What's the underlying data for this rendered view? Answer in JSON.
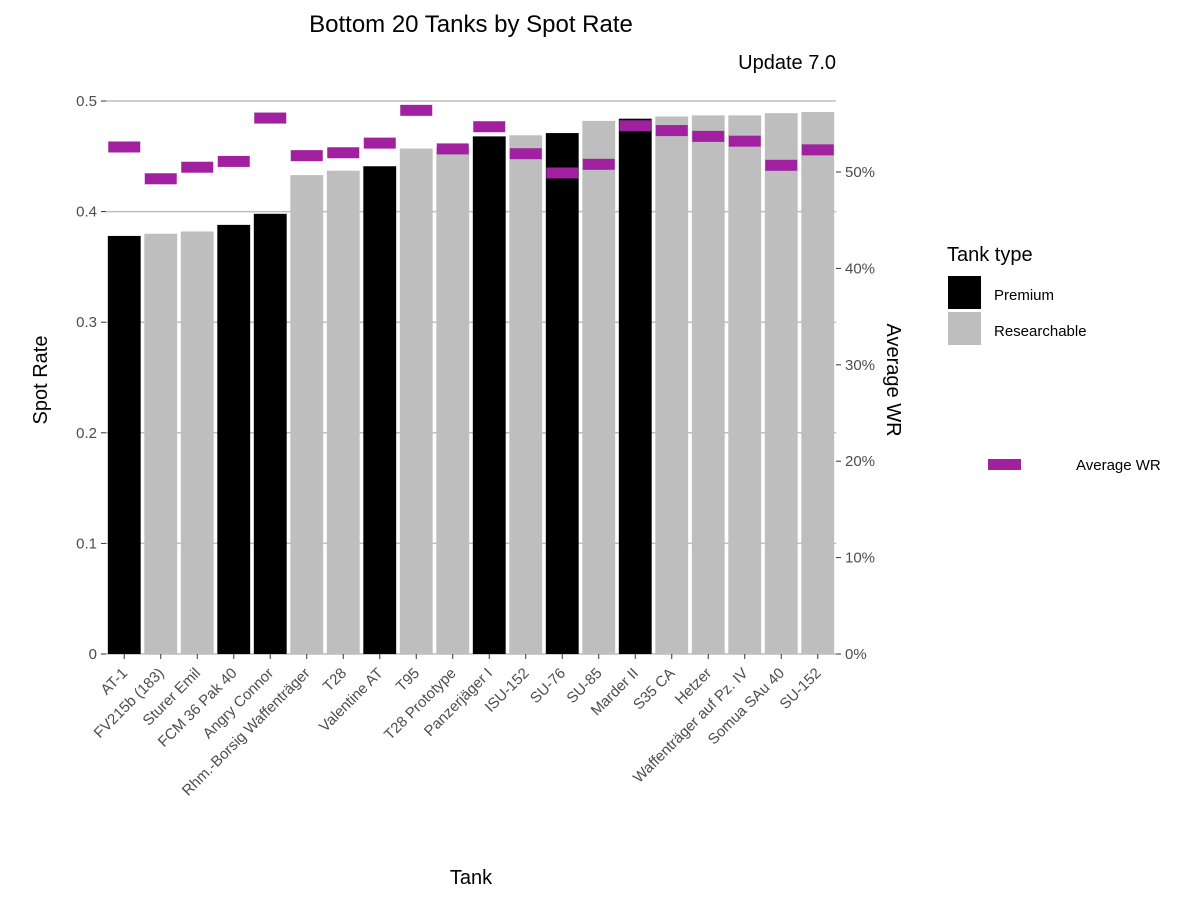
{
  "chart_data": {
    "type": "bar",
    "title": "Bottom 20 Tanks by Spot Rate",
    "subtitle": "Update 7.0",
    "xlabel": "Tank",
    "ylabel": "Spot Rate",
    "y2label": "Average WR",
    "ylim": [
      0,
      0.5
    ],
    "y_ticks": [
      "0",
      "0.1",
      "0.2",
      "0.3",
      "0.4",
      "0.5"
    ],
    "y2lim": [
      0,
      0.5768
    ],
    "y2_ticks": [
      "0%",
      "10%",
      "20%",
      "30%",
      "40%",
      "50%"
    ],
    "categories": [
      "AT-1",
      "FV215b (183)",
      "Sturer Emil",
      "FCM 36 Pak 40",
      "Angry Connor",
      "Rhm.-Borsig Waffenträger",
      "T28",
      "Valentine AT",
      "T95",
      "T28 Prototype",
      "Panzerjäger I",
      "ISU-152",
      "SU-76",
      "SU-85",
      "Marder II",
      "S35 CA",
      "Hetzer",
      "Waffenträger auf Pz. IV",
      "Somua SAu 40",
      "SU-152"
    ],
    "spot_rate": [
      0.378,
      0.38,
      0.382,
      0.388,
      0.398,
      0.433,
      0.437,
      0.441,
      0.457,
      0.458,
      0.468,
      0.469,
      0.471,
      0.482,
      0.484,
      0.486,
      0.487,
      0.487,
      0.489,
      0.49
    ],
    "tank_type": [
      "Premium",
      "Researchable",
      "Researchable",
      "Premium",
      "Premium",
      "Researchable",
      "Researchable",
      "Premium",
      "Researchable",
      "Researchable",
      "Premium",
      "Researchable",
      "Premium",
      "Researchable",
      "Premium",
      "Researchable",
      "Researchable",
      "Researchable",
      "Researchable",
      "Researchable"
    ],
    "average_wr": [
      0.526,
      0.493,
      0.505,
      0.511,
      0.556,
      0.517,
      0.52,
      0.53,
      0.564,
      0.524,
      0.547,
      0.519,
      0.499,
      0.508,
      0.548,
      0.543,
      0.537,
      0.532,
      0.507,
      0.523
    ],
    "legend": {
      "title": "Tank type",
      "entries": [
        {
          "label": "Premium",
          "color": "#000000"
        },
        {
          "label": "Researchable",
          "color": "#bebebe"
        }
      ],
      "wr_label": "Average WR",
      "wr_color": "#a020a0"
    },
    "grid": true
  }
}
